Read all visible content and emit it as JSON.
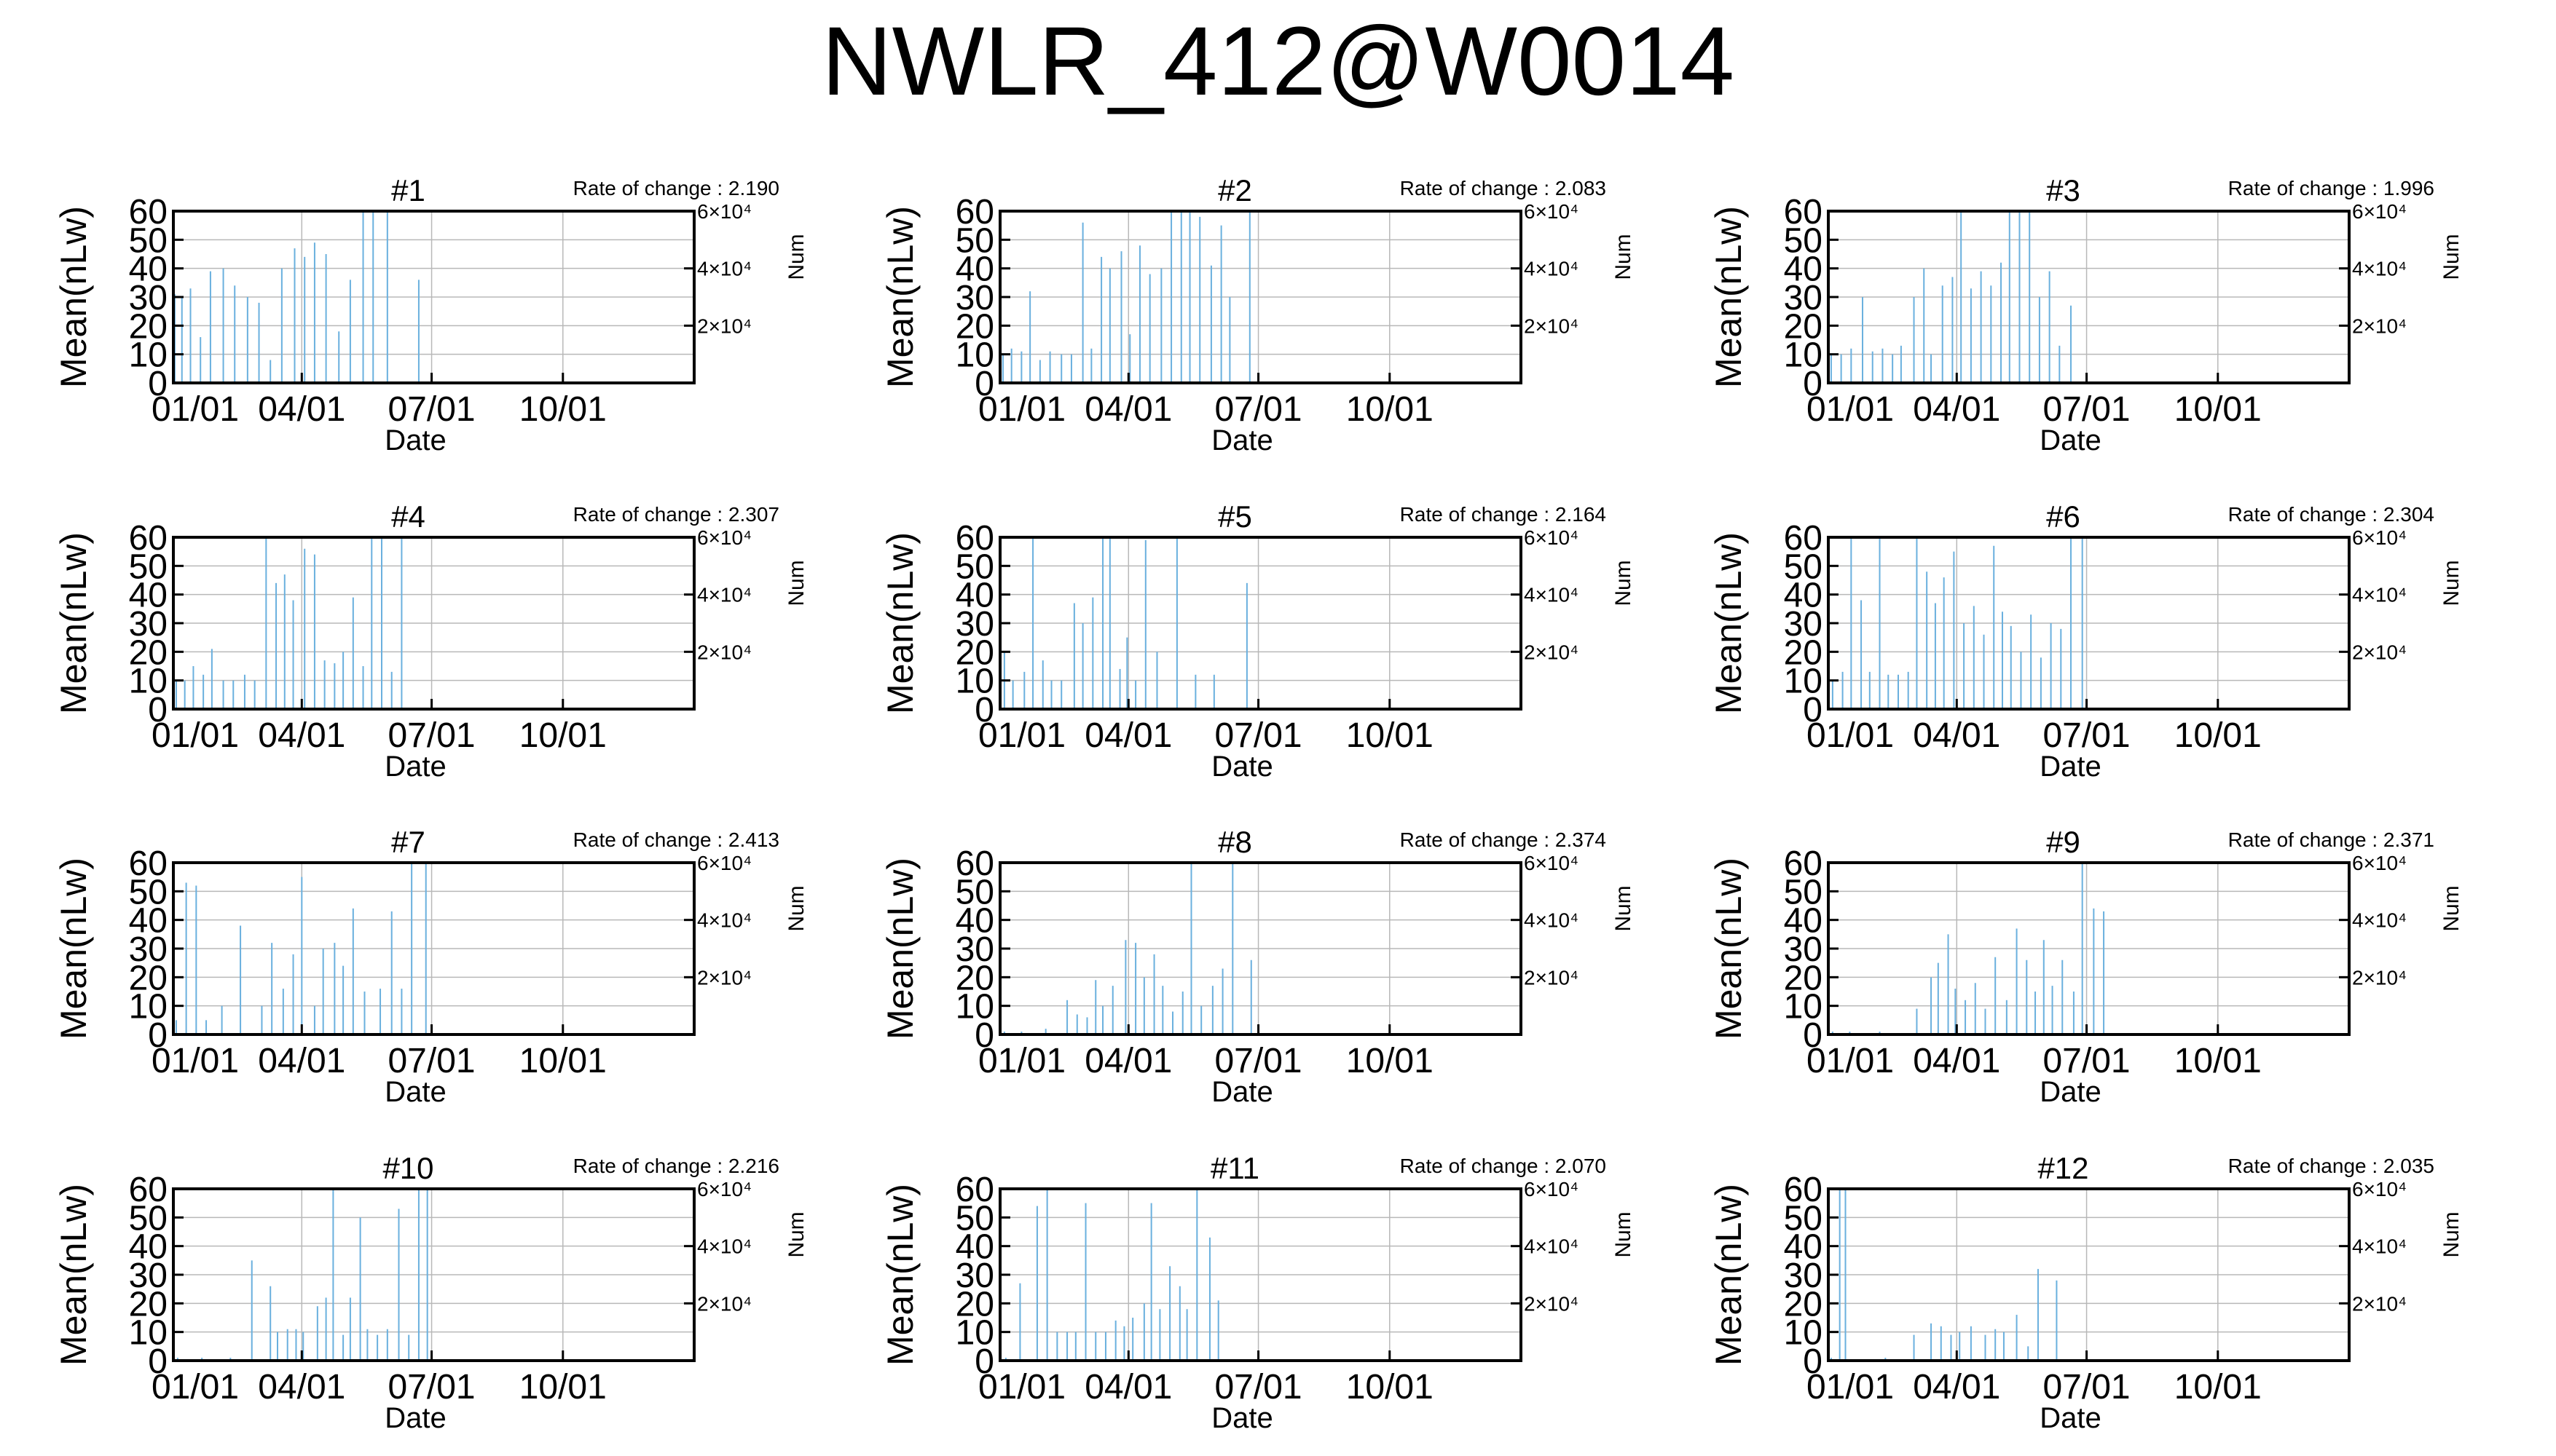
{
  "title": "NWLR_412@W0014",
  "chart_data": {
    "type": "bar",
    "title": "NWLR_412@W0014",
    "xlabel": "Date",
    "ylabel": "Mean(nLw)",
    "y2label": "Num",
    "xlim": [
      "01/01",
      "12/31"
    ],
    "xticks": [
      "01/01",
      "04/01",
      "07/01",
      "10/01"
    ],
    "ylim": [
      0,
      60
    ],
    "yticks": [
      "0",
      "10",
      "20",
      "30",
      "40",
      "50",
      "60"
    ],
    "y2ticks": [
      "2×10⁴",
      "4×10⁴",
      "6×10⁴"
    ],
    "grid": true,
    "rate_prefix": "Rate of change : ",
    "bar_color": "#6ab0de",
    "panels": [
      {
        "label": "#1",
        "rate": "2.190",
        "bars": [
          [
            1,
            31
          ],
          [
            6,
            30
          ],
          [
            12,
            33
          ],
          [
            19,
            16
          ],
          [
            26,
            39
          ],
          [
            35,
            40
          ],
          [
            43,
            34
          ],
          [
            52,
            30
          ],
          [
            60,
            28
          ],
          [
            68,
            8
          ],
          [
            76,
            40
          ],
          [
            85,
            47
          ],
          [
            92,
            44
          ],
          [
            99,
            49
          ],
          [
            107,
            45
          ],
          [
            116,
            18
          ],
          [
            124,
            36
          ],
          [
            133,
            61
          ],
          [
            140,
            62
          ],
          [
            150,
            61
          ],
          [
            172,
            36
          ]
        ]
      },
      {
        "label": "#2",
        "rate": "2.083",
        "bars": [
          [
            2,
            10
          ],
          [
            8,
            12
          ],
          [
            15,
            11
          ],
          [
            21,
            32
          ],
          [
            28,
            8
          ],
          [
            35,
            11
          ],
          [
            43,
            10
          ],
          [
            50,
            10
          ],
          [
            58,
            56
          ],
          [
            64,
            12
          ],
          [
            71,
            44
          ],
          [
            77,
            40
          ],
          [
            85,
            46
          ],
          [
            91,
            17
          ],
          [
            98,
            48
          ],
          [
            105,
            38
          ],
          [
            113,
            40
          ],
          [
            120,
            61
          ],
          [
            127,
            61
          ],
          [
            133,
            61
          ],
          [
            140,
            58
          ],
          [
            148,
            41
          ],
          [
            155,
            55
          ],
          [
            161,
            30
          ],
          [
            175,
            61
          ]
        ]
      },
      {
        "label": "#3",
        "rate": "1.996",
        "bars": [
          [
            2,
            10
          ],
          [
            9,
            10
          ],
          [
            16,
            12
          ],
          [
            24,
            30
          ],
          [
            31,
            11
          ],
          [
            38,
            12
          ],
          [
            45,
            10
          ],
          [
            51,
            13
          ],
          [
            60,
            30
          ],
          [
            67,
            40
          ],
          [
            72,
            10
          ],
          [
            80,
            34
          ],
          [
            87,
            37
          ],
          [
            93,
            60
          ],
          [
            100,
            33
          ],
          [
            107,
            39
          ],
          [
            114,
            34
          ],
          [
            121,
            42
          ],
          [
            127,
            61
          ],
          [
            134,
            61
          ],
          [
            141,
            61
          ],
          [
            148,
            30
          ],
          [
            155,
            39
          ],
          [
            162,
            13
          ],
          [
            170,
            27
          ]
        ]
      },
      {
        "label": "#4",
        "rate": "2.307",
        "bars": [
          [
            2,
            10
          ],
          [
            8,
            10
          ],
          [
            14,
            15
          ],
          [
            21,
            12
          ],
          [
            27,
            21
          ],
          [
            35,
            10
          ],
          [
            42,
            10
          ],
          [
            50,
            12
          ],
          [
            57,
            10
          ],
          [
            65,
            61
          ],
          [
            72,
            44
          ],
          [
            78,
            47
          ],
          [
            84,
            38
          ],
          [
            92,
            56
          ],
          [
            99,
            54
          ],
          [
            106,
            17
          ],
          [
            113,
            16
          ],
          [
            119,
            20
          ],
          [
            126,
            39
          ],
          [
            133,
            15
          ],
          [
            139,
            60
          ],
          [
            146,
            61
          ],
          [
            153,
            13
          ],
          [
            160,
            61
          ]
        ]
      },
      {
        "label": "#5",
        "rate": "2.164",
        "bars": [
          [
            3,
            20
          ],
          [
            9,
            10
          ],
          [
            17,
            13
          ],
          [
            23,
            61
          ],
          [
            30,
            17
          ],
          [
            36,
            10
          ],
          [
            43,
            10
          ],
          [
            52,
            37
          ],
          [
            58,
            30
          ],
          [
            65,
            39
          ],
          [
            72,
            61
          ],
          [
            77,
            61
          ],
          [
            84,
            14
          ],
          [
            89,
            25
          ],
          [
            95,
            10
          ],
          [
            102,
            59
          ],
          [
            110,
            20
          ],
          [
            124,
            61
          ],
          [
            137,
            12
          ],
          [
            150,
            12
          ],
          [
            173,
            44
          ]
        ]
      },
      {
        "label": "#6",
        "rate": "2.304",
        "bars": [
          [
            3,
            10
          ],
          [
            10,
            13
          ],
          [
            16,
            61
          ],
          [
            23,
            38
          ],
          [
            29,
            13
          ],
          [
            36,
            61
          ],
          [
            42,
            12
          ],
          [
            49,
            12
          ],
          [
            56,
            13
          ],
          [
            62,
            61
          ],
          [
            69,
            48
          ],
          [
            75,
            37
          ],
          [
            81,
            46
          ],
          [
            88,
            55
          ],
          [
            95,
            30
          ],
          [
            102,
            36
          ],
          [
            109,
            26
          ],
          [
            116,
            57
          ],
          [
            122,
            34
          ],
          [
            128,
            29
          ],
          [
            135,
            20
          ],
          [
            142,
            33
          ],
          [
            149,
            18
          ],
          [
            156,
            30
          ],
          [
            163,
            28
          ],
          [
            170,
            61
          ],
          [
            178,
            61
          ]
        ]
      },
      {
        "label": "#7",
        "rate": "2.413",
        "bars": [
          [
            2,
            5
          ],
          [
            9,
            53
          ],
          [
            16,
            52
          ],
          [
            23,
            5
          ],
          [
            34,
            10
          ],
          [
            47,
            38
          ],
          [
            62,
            10
          ],
          [
            69,
            32
          ],
          [
            77,
            16
          ],
          [
            84,
            28
          ],
          [
            90,
            55
          ],
          [
            99,
            10
          ],
          [
            105,
            30
          ],
          [
            113,
            32
          ],
          [
            119,
            24
          ],
          [
            126,
            44
          ],
          [
            134,
            15
          ],
          [
            145,
            16
          ],
          [
            153,
            43
          ],
          [
            160,
            16
          ],
          [
            167,
            61
          ],
          [
            177,
            61
          ]
        ]
      },
      {
        "label": "#8",
        "rate": "2.374",
        "bars": [
          [
            3,
            1
          ],
          [
            15,
            1
          ],
          [
            32,
            2
          ],
          [
            47,
            12
          ],
          [
            54,
            7
          ],
          [
            61,
            6
          ],
          [
            67,
            19
          ],
          [
            72,
            10
          ],
          [
            79,
            17
          ],
          [
            88,
            33
          ],
          [
            95,
            32
          ],
          [
            101,
            20
          ],
          [
            108,
            28
          ],
          [
            114,
            17
          ],
          [
            121,
            8
          ],
          [
            128,
            15
          ],
          [
            134,
            61
          ],
          [
            141,
            10
          ],
          [
            149,
            17
          ],
          [
            156,
            23
          ],
          [
            163,
            61
          ],
          [
            176,
            26
          ]
        ]
      },
      {
        "label": "#9",
        "rate": "2.371",
        "bars": [
          [
            3,
            1
          ],
          [
            15,
            1
          ],
          [
            36,
            1
          ],
          [
            62,
            9
          ],
          [
            72,
            20
          ],
          [
            77,
            25
          ],
          [
            84,
            35
          ],
          [
            89,
            16
          ],
          [
            96,
            12
          ],
          [
            103,
            18
          ],
          [
            110,
            9
          ],
          [
            117,
            27
          ],
          [
            125,
            12
          ],
          [
            132,
            37
          ],
          [
            139,
            26
          ],
          [
            145,
            15
          ],
          [
            151,
            33
          ],
          [
            157,
            17
          ],
          [
            164,
            26
          ],
          [
            172,
            15
          ],
          [
            178,
            61
          ],
          [
            186,
            44
          ],
          [
            193,
            43
          ]
        ]
      },
      {
        "label": "#10",
        "rate": "2.216",
        "bars": [
          [
            3,
            1
          ],
          [
            20,
            1
          ],
          [
            40,
            1
          ],
          [
            55,
            35
          ],
          [
            68,
            26
          ],
          [
            73,
            10
          ],
          [
            80,
            11
          ],
          [
            86,
            11
          ],
          [
            91,
            10
          ],
          [
            101,
            19
          ],
          [
            107,
            22
          ],
          [
            112,
            61
          ],
          [
            119,
            9
          ],
          [
            124,
            22
          ],
          [
            131,
            50
          ],
          [
            136,
            11
          ],
          [
            143,
            9
          ],
          [
            150,
            11
          ],
          [
            158,
            53
          ],
          [
            165,
            9
          ],
          [
            172,
            61
          ],
          [
            178,
            61
          ]
        ]
      },
      {
        "label": "#11",
        "rate": "2.070",
        "bars": [
          [
            4,
            1
          ],
          [
            14,
            27
          ],
          [
            26,
            54
          ],
          [
            33,
            61
          ],
          [
            40,
            10
          ],
          [
            47,
            10
          ],
          [
            53,
            10
          ],
          [
            60,
            55
          ],
          [
            67,
            10
          ],
          [
            74,
            10
          ],
          [
            81,
            14
          ],
          [
            87,
            12
          ],
          [
            93,
            15
          ],
          [
            101,
            20
          ],
          [
            106,
            55
          ],
          [
            112,
            18
          ],
          [
            119,
            33
          ],
          [
            126,
            26
          ],
          [
            131,
            18
          ],
          [
            138,
            61
          ],
          [
            147,
            43
          ],
          [
            153,
            21
          ]
        ]
      },
      {
        "label": "#12",
        "rate": "2.035",
        "bars": [
          [
            2,
            1
          ],
          [
            8,
            61
          ],
          [
            12,
            61
          ],
          [
            40,
            1
          ],
          [
            60,
            9
          ],
          [
            72,
            13
          ],
          [
            79,
            12
          ],
          [
            86,
            9
          ],
          [
            92,
            10
          ],
          [
            100,
            12
          ],
          [
            110,
            9
          ],
          [
            117,
            11
          ],
          [
            123,
            10
          ],
          [
            132,
            16
          ],
          [
            140,
            5
          ],
          [
            147,
            32
          ],
          [
            160,
            28
          ]
        ]
      }
    ]
  }
}
